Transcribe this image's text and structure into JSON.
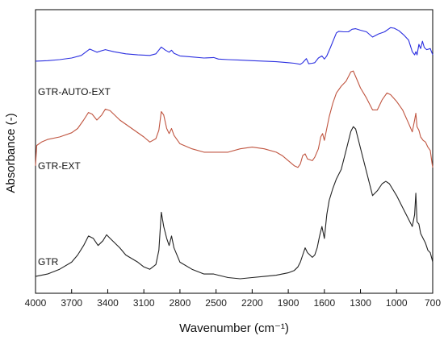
{
  "chart_data": {
    "type": "line",
    "xlabel": "Wavenumber (cm⁻¹)",
    "ylabel": "Absorbance (-)",
    "xlim": [
      4000,
      700
    ],
    "x_reversed": true,
    "grid": false,
    "x_ticks": [
      "4000",
      "3700",
      "3400",
      "3100",
      "2800",
      "2500",
      "2200",
      "1900",
      "1600",
      "1300",
      "1000",
      "700"
    ],
    "series": [
      {
        "name": "GTR-AUTO-EXT",
        "color": "#2b2fe0",
        "points": [
          [
            4000,
            0.57
          ],
          [
            3900,
            0.575
          ],
          [
            3800,
            0.585
          ],
          [
            3700,
            0.6
          ],
          [
            3620,
            0.625
          ],
          [
            3550,
            0.685
          ],
          [
            3490,
            0.655
          ],
          [
            3420,
            0.68
          ],
          [
            3350,
            0.66
          ],
          [
            3250,
            0.64
          ],
          [
            3150,
            0.63
          ],
          [
            3050,
            0.625
          ],
          [
            3000,
            0.64
          ],
          [
            2955,
            0.705
          ],
          [
            2920,
            0.675
          ],
          [
            2890,
            0.655
          ],
          [
            2870,
            0.675
          ],
          [
            2850,
            0.645
          ],
          [
            2800,
            0.62
          ],
          [
            2700,
            0.61
          ],
          [
            2600,
            0.6
          ],
          [
            2520,
            0.605
          ],
          [
            2480,
            0.59
          ],
          [
            2400,
            0.585
          ],
          [
            2300,
            0.58
          ],
          [
            2200,
            0.575
          ],
          [
            2100,
            0.57
          ],
          [
            2000,
            0.565
          ],
          [
            1900,
            0.555
          ],
          [
            1850,
            0.55
          ],
          [
            1800,
            0.54
          ],
          [
            1780,
            0.555
          ],
          [
            1750,
            0.595
          ],
          [
            1730,
            0.545
          ],
          [
            1700,
            0.55
          ],
          [
            1680,
            0.555
          ],
          [
            1650,
            0.6
          ],
          [
            1620,
            0.62
          ],
          [
            1600,
            0.59
          ],
          [
            1580,
            0.62
          ],
          [
            1550,
            0.7
          ],
          [
            1500,
            0.84
          ],
          [
            1480,
            0.855
          ],
          [
            1440,
            0.85
          ],
          [
            1400,
            0.85
          ],
          [
            1370,
            0.875
          ],
          [
            1340,
            0.88
          ],
          [
            1300,
            0.865
          ],
          [
            1250,
            0.85
          ],
          [
            1200,
            0.8
          ],
          [
            1150,
            0.83
          ],
          [
            1100,
            0.85
          ],
          [
            1050,
            0.89
          ],
          [
            1020,
            0.885
          ],
          [
            980,
            0.86
          ],
          [
            940,
            0.82
          ],
          [
            900,
            0.77
          ],
          [
            870,
            0.66
          ],
          [
            850,
            0.63
          ],
          [
            840,
            0.66
          ],
          [
            830,
            0.63
          ],
          [
            815,
            0.73
          ],
          [
            800,
            0.69
          ],
          [
            785,
            0.76
          ],
          [
            770,
            0.7
          ],
          [
            750,
            0.68
          ],
          [
            720,
            0.69
          ],
          [
            700,
            0.63
          ]
        ]
      },
      {
        "name": "GTR-EXT",
        "color": "#c05540",
        "points": [
          [
            4000,
            0.23
          ],
          [
            3990,
            0.35
          ],
          [
            3950,
            0.37
          ],
          [
            3900,
            0.385
          ],
          [
            3800,
            0.4
          ],
          [
            3700,
            0.425
          ],
          [
            3650,
            0.45
          ],
          [
            3600,
            0.5
          ],
          [
            3560,
            0.545
          ],
          [
            3530,
            0.535
          ],
          [
            3490,
            0.5
          ],
          [
            3450,
            0.53
          ],
          [
            3420,
            0.565
          ],
          [
            3380,
            0.555
          ],
          [
            3300,
            0.5
          ],
          [
            3200,
            0.45
          ],
          [
            3100,
            0.4
          ],
          [
            3050,
            0.37
          ],
          [
            3000,
            0.39
          ],
          [
            2975,
            0.44
          ],
          [
            2955,
            0.55
          ],
          [
            2935,
            0.53
          ],
          [
            2910,
            0.45
          ],
          [
            2890,
            0.42
          ],
          [
            2870,
            0.45
          ],
          [
            2850,
            0.41
          ],
          [
            2800,
            0.36
          ],
          [
            2700,
            0.33
          ],
          [
            2600,
            0.31
          ],
          [
            2520,
            0.31
          ],
          [
            2480,
            0.31
          ],
          [
            2400,
            0.31
          ],
          [
            2300,
            0.33
          ],
          [
            2200,
            0.34
          ],
          [
            2100,
            0.33
          ],
          [
            2000,
            0.31
          ],
          [
            1950,
            0.29
          ],
          [
            1900,
            0.26
          ],
          [
            1850,
            0.23
          ],
          [
            1820,
            0.22
          ],
          [
            1800,
            0.24
          ],
          [
            1780,
            0.29
          ],
          [
            1760,
            0.3
          ],
          [
            1740,
            0.27
          ],
          [
            1700,
            0.26
          ],
          [
            1680,
            0.28
          ],
          [
            1650,
            0.33
          ],
          [
            1630,
            0.4
          ],
          [
            1615,
            0.42
          ],
          [
            1600,
            0.38
          ],
          [
            1580,
            0.45
          ],
          [
            1560,
            0.52
          ],
          [
            1530,
            0.6
          ],
          [
            1500,
            0.66
          ],
          [
            1460,
            0.7
          ],
          [
            1420,
            0.73
          ],
          [
            1380,
            0.785
          ],
          [
            1360,
            0.79
          ],
          [
            1330,
            0.74
          ],
          [
            1300,
            0.69
          ],
          [
            1250,
            0.63
          ],
          [
            1200,
            0.56
          ],
          [
            1160,
            0.56
          ],
          [
            1120,
            0.62
          ],
          [
            1080,
            0.66
          ],
          [
            1050,
            0.65
          ],
          [
            1000,
            0.61
          ],
          [
            950,
            0.56
          ],
          [
            900,
            0.48
          ],
          [
            870,
            0.43
          ],
          [
            850,
            0.5
          ],
          [
            840,
            0.54
          ],
          [
            830,
            0.46
          ],
          [
            815,
            0.44
          ],
          [
            800,
            0.4
          ],
          [
            780,
            0.38
          ],
          [
            760,
            0.37
          ],
          [
            740,
            0.34
          ],
          [
            720,
            0.32
          ],
          [
            705,
            0.24
          ],
          [
            700,
            0.22
          ]
        ]
      },
      {
        "name": "GTR",
        "color": "#222222",
        "points": [
          [
            4000,
            0.01
          ],
          [
            3900,
            0.02
          ],
          [
            3800,
            0.04
          ],
          [
            3700,
            0.07
          ],
          [
            3650,
            0.1
          ],
          [
            3600,
            0.14
          ],
          [
            3560,
            0.18
          ],
          [
            3520,
            0.17
          ],
          [
            3480,
            0.14
          ],
          [
            3440,
            0.16
          ],
          [
            3410,
            0.185
          ],
          [
            3380,
            0.17
          ],
          [
            3300,
            0.13
          ],
          [
            3250,
            0.1
          ],
          [
            3150,
            0.07
          ],
          [
            3100,
            0.05
          ],
          [
            3050,
            0.04
          ],
          [
            3000,
            0.06
          ],
          [
            2975,
            0.12
          ],
          [
            2955,
            0.28
          ],
          [
            2935,
            0.22
          ],
          [
            2910,
            0.17
          ],
          [
            2890,
            0.14
          ],
          [
            2870,
            0.18
          ],
          [
            2850,
            0.13
          ],
          [
            2800,
            0.07
          ],
          [
            2700,
            0.04
          ],
          [
            2600,
            0.02
          ],
          [
            2520,
            0.02
          ],
          [
            2480,
            0.015
          ],
          [
            2400,
            0.005
          ],
          [
            2300,
            0.0
          ],
          [
            2200,
            0.005
          ],
          [
            2100,
            0.01
          ],
          [
            2000,
            0.015
          ],
          [
            1900,
            0.025
          ],
          [
            1850,
            0.035
          ],
          [
            1820,
            0.05
          ],
          [
            1800,
            0.07
          ],
          [
            1780,
            0.1
          ],
          [
            1760,
            0.13
          ],
          [
            1740,
            0.11
          ],
          [
            1700,
            0.09
          ],
          [
            1680,
            0.1
          ],
          [
            1660,
            0.13
          ],
          [
            1640,
            0.18
          ],
          [
            1620,
            0.22
          ],
          [
            1600,
            0.17
          ],
          [
            1580,
            0.27
          ],
          [
            1560,
            0.33
          ],
          [
            1530,
            0.38
          ],
          [
            1500,
            0.42
          ],
          [
            1460,
            0.46
          ],
          [
            1420,
            0.54
          ],
          [
            1380,
            0.62
          ],
          [
            1360,
            0.64
          ],
          [
            1340,
            0.63
          ],
          [
            1300,
            0.55
          ],
          [
            1250,
            0.45
          ],
          [
            1200,
            0.35
          ],
          [
            1160,
            0.37
          ],
          [
            1120,
            0.4
          ],
          [
            1090,
            0.41
          ],
          [
            1060,
            0.4
          ],
          [
            1000,
            0.35
          ],
          [
            950,
            0.3
          ],
          [
            900,
            0.25
          ],
          [
            870,
            0.22
          ],
          [
            850,
            0.27
          ],
          [
            840,
            0.36
          ],
          [
            830,
            0.24
          ],
          [
            815,
            0.23
          ],
          [
            800,
            0.19
          ],
          [
            780,
            0.17
          ],
          [
            760,
            0.15
          ],
          [
            740,
            0.12
          ],
          [
            720,
            0.11
          ],
          [
            705,
            0.08
          ],
          [
            700,
            0.07
          ]
        ]
      }
    ]
  }
}
